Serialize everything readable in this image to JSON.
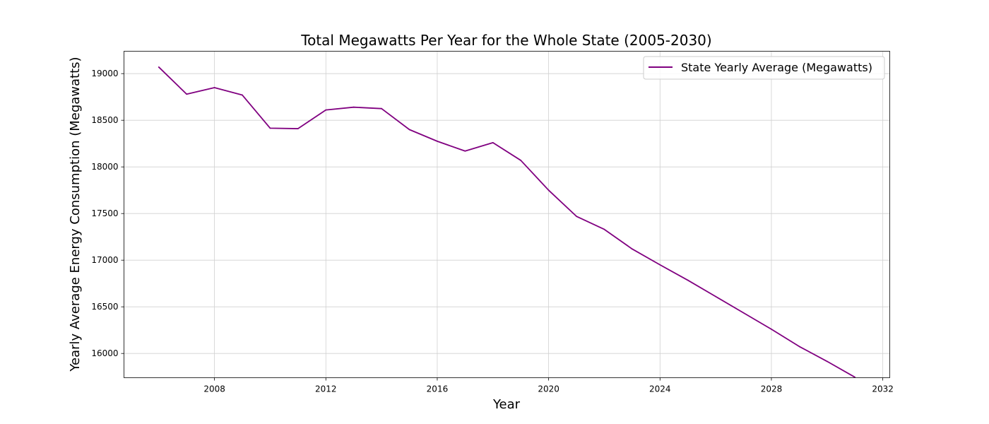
{
  "chart_data": {
    "type": "line",
    "title": "Total Megawatts Per Year for the Whole State (2005-2030)",
    "xlabel": "Year",
    "ylabel": "Yearly Average Energy Consumption (Megawatts)",
    "xlim": [
      2004.75,
      2032.25
    ],
    "ylim": [
      15740,
      19240
    ],
    "xticks": [
      2008,
      2012,
      2016,
      2020,
      2024,
      2028,
      2032
    ],
    "yticks": [
      16000,
      16500,
      17000,
      17500,
      18000,
      18500,
      19000
    ],
    "grid": true,
    "legend_position": "top-right",
    "series": [
      {
        "name": "State Yearly Average (Megawatts)",
        "color": "#800080",
        "x": [
          2006,
          2007,
          2008,
          2009,
          2010,
          2011,
          2012,
          2013,
          2014,
          2015,
          2016,
          2017,
          2018,
          2019,
          2020,
          2021,
          2022,
          2023,
          2024,
          2025,
          2026,
          2027,
          2028,
          2029,
          2030,
          2031
        ],
        "y": [
          19070,
          18780,
          18850,
          18770,
          18415,
          18410,
          18610,
          18640,
          18625,
          18400,
          18275,
          18170,
          18260,
          18070,
          17750,
          17470,
          17330,
          17120,
          16950,
          16785,
          16610,
          16435,
          16260,
          16075,
          15915,
          15745
        ]
      }
    ]
  }
}
